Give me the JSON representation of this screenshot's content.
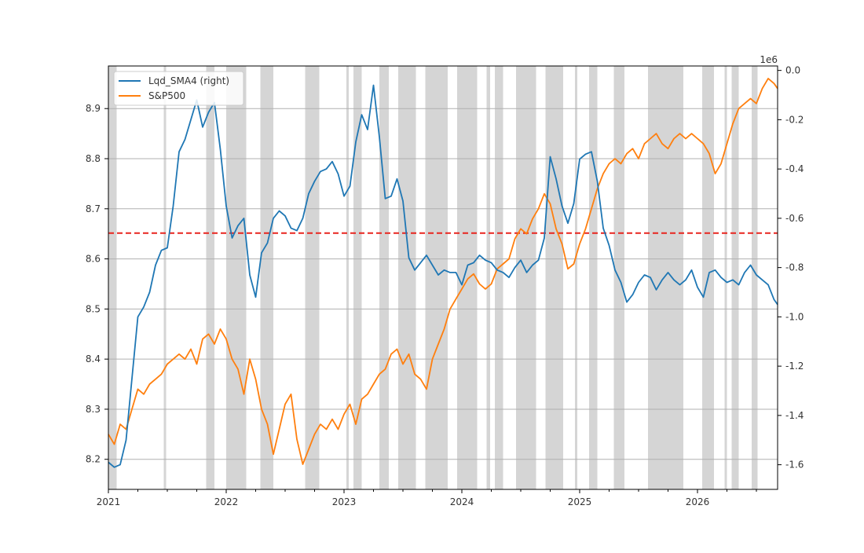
{
  "chart_data": {
    "type": "line",
    "title": "",
    "xlabel": "",
    "ylabel": "",
    "x_ticks": [
      "2021",
      "2022",
      "2023",
      "2024",
      "2025",
      "2026"
    ],
    "x_tick_values": [
      2021,
      2022,
      2023,
      2024,
      2025,
      2026
    ],
    "xlim": [
      2021.0,
      2026.68
    ],
    "y_left": {
      "lim": [
        8.14,
        8.985
      ],
      "ticks": [
        8.2,
        8.3,
        8.4,
        8.5,
        8.6,
        8.7,
        8.8,
        8.9
      ],
      "tick_labels": [
        "8.2",
        "8.3",
        "8.4",
        "8.5",
        "8.6",
        "8.7",
        "8.8",
        "8.9"
      ]
    },
    "y_right": {
      "lim": [
        -1.7,
        0.018
      ],
      "ticks": [
        0.0,
        -0.2,
        -0.4,
        -0.6,
        -0.8,
        -1.0,
        -1.2,
        -1.4,
        -1.6
      ],
      "tick_labels": [
        "0.0",
        "-0.2",
        "-0.4",
        "-0.6",
        "-0.8",
        "-1.0",
        "-1.2",
        "-1.4",
        "-1.6"
      ],
      "offset_label": "1e6"
    },
    "grid": "horizontal",
    "legend": {
      "placement": "top-left",
      "entries": [
        "Lqd_SMA4 (right)",
        "S&P500"
      ]
    },
    "threshold_line": {
      "axis": "right",
      "value": -0.66,
      "color": "#e8251e",
      "style": "dashed"
    },
    "shaded_periods": [
      [
        2021.0,
        2021.07
      ],
      [
        2021.47,
        2021.49
      ],
      [
        2021.83,
        2021.9
      ],
      [
        2022.0,
        2022.17
      ],
      [
        2022.29,
        2022.4
      ],
      [
        2022.67,
        2022.79
      ],
      [
        2023.02,
        2023.04
      ],
      [
        2023.08,
        2023.15
      ],
      [
        2023.3,
        2023.38
      ],
      [
        2023.46,
        2023.61
      ],
      [
        2023.69,
        2023.88
      ],
      [
        2023.96,
        2024.13
      ],
      [
        2024.21,
        2024.24
      ],
      [
        2024.28,
        2024.35
      ],
      [
        2024.46,
        2024.63
      ],
      [
        2024.71,
        2024.86
      ],
      [
        2024.96,
        2024.98
      ],
      [
        2025.08,
        2025.15
      ],
      [
        2025.29,
        2025.38
      ],
      [
        2025.58,
        2025.88
      ],
      [
        2026.04,
        2026.14
      ],
      [
        2026.23,
        2026.25
      ],
      [
        2026.29,
        2026.35
      ],
      [
        2026.46,
        2026.51
      ]
    ],
    "shade_color": "#d3d3d3",
    "series": [
      {
        "name": "Lqd_SMA4 (right)",
        "axis": "right",
        "color": "#1f77b4",
        "x": [
          2021.0,
          2021.05,
          2021.1,
          2021.15,
          2021.2,
          2021.25,
          2021.3,
          2021.35,
          2021.4,
          2021.45,
          2021.5,
          2021.55,
          2021.6,
          2021.65,
          2021.7,
          2021.75,
          2021.8,
          2021.85,
          2021.9,
          2021.95,
          2022.0,
          2022.05,
          2022.1,
          2022.15,
          2022.2,
          2022.25,
          2022.3,
          2022.35,
          2022.4,
          2022.45,
          2022.5,
          2022.55,
          2022.6,
          2022.65,
          2022.7,
          2022.75,
          2022.8,
          2022.85,
          2022.9,
          2022.95,
          2023.0,
          2023.05,
          2023.1,
          2023.15,
          2023.2,
          2023.25,
          2023.3,
          2023.35,
          2023.4,
          2023.45,
          2023.5,
          2023.55,
          2023.6,
          2023.65,
          2023.7,
          2023.75,
          2023.8,
          2023.85,
          2023.9,
          2023.95,
          2024.0,
          2024.05,
          2024.1,
          2024.15,
          2024.2,
          2024.25,
          2024.3,
          2024.35,
          2024.4,
          2024.45,
          2024.5,
          2024.55,
          2024.6,
          2024.65,
          2024.7,
          2024.75,
          2024.8,
          2024.85,
          2024.9,
          2024.95,
          2025.0,
          2025.05,
          2025.1,
          2025.15,
          2025.2,
          2025.25,
          2025.3,
          2025.35,
          2025.4,
          2025.45,
          2025.5,
          2025.55,
          2025.6,
          2025.65,
          2025.7,
          2025.75,
          2025.8,
          2025.85,
          2025.9,
          2025.95,
          2026.0,
          2026.05,
          2026.1,
          2026.15,
          2026.2,
          2026.25,
          2026.3,
          2026.35,
          2026.4,
          2026.45,
          2026.5,
          2026.55,
          2026.6,
          2026.65,
          2026.68
        ],
        "values": [
          -1.59,
          -1.61,
          -1.6,
          -1.5,
          -1.25,
          -1.0,
          -0.96,
          -0.9,
          -0.79,
          -0.73,
          -0.72,
          -0.55,
          -0.33,
          -0.28,
          -0.2,
          -0.12,
          -0.23,
          -0.17,
          -0.13,
          -0.32,
          -0.55,
          -0.68,
          -0.63,
          -0.6,
          -0.83,
          -0.92,
          -0.74,
          -0.7,
          -0.6,
          -0.57,
          -0.59,
          -0.64,
          -0.65,
          -0.6,
          -0.5,
          -0.45,
          -0.41,
          -0.4,
          -0.37,
          -0.42,
          -0.51,
          -0.47,
          -0.29,
          -0.18,
          -0.24,
          -0.06,
          -0.27,
          -0.52,
          -0.51,
          -0.44,
          -0.53,
          -0.76,
          -0.81,
          -0.78,
          -0.75,
          -0.79,
          -0.83,
          -0.81,
          -0.82,
          -0.82,
          -0.87,
          -0.79,
          -0.78,
          -0.75,
          -0.77,
          -0.78,
          -0.81,
          -0.82,
          -0.84,
          -0.8,
          -0.77,
          -0.82,
          -0.79,
          -0.77,
          -0.68,
          -0.35,
          -0.44,
          -0.55,
          -0.62,
          -0.54,
          -0.36,
          -0.34,
          -0.33,
          -0.45,
          -0.64,
          -0.71,
          -0.81,
          -0.86,
          -0.94,
          -0.91,
          -0.86,
          -0.83,
          -0.84,
          -0.89,
          -0.85,
          -0.82,
          -0.85,
          -0.87,
          -0.85,
          -0.81,
          -0.88,
          -0.92,
          -0.82,
          -0.81,
          -0.84,
          -0.86,
          -0.85,
          -0.87,
          -0.82,
          -0.79,
          -0.83,
          -0.85,
          -0.87,
          -0.93,
          -0.95
        ]
      },
      {
        "name": "S&P500",
        "axis": "left",
        "color": "#ff7f0e",
        "x": [
          2021.0,
          2021.05,
          2021.1,
          2021.15,
          2021.2,
          2021.25,
          2021.3,
          2021.35,
          2021.4,
          2021.45,
          2021.5,
          2021.55,
          2021.6,
          2021.65,
          2021.7,
          2021.75,
          2021.8,
          2021.85,
          2021.9,
          2021.95,
          2022.0,
          2022.05,
          2022.1,
          2022.15,
          2022.2,
          2022.25,
          2022.3,
          2022.35,
          2022.4,
          2022.45,
          2022.5,
          2022.55,
          2022.6,
          2022.65,
          2022.7,
          2022.75,
          2022.8,
          2022.85,
          2022.9,
          2022.95,
          2023.0,
          2023.05,
          2023.1,
          2023.15,
          2023.2,
          2023.25,
          2023.3,
          2023.35,
          2023.4,
          2023.45,
          2023.5,
          2023.55,
          2023.6,
          2023.65,
          2023.7,
          2023.75,
          2023.8,
          2023.85,
          2023.9,
          2023.95,
          2024.0,
          2024.05,
          2024.1,
          2024.15,
          2024.2,
          2024.25,
          2024.3,
          2024.35,
          2024.4,
          2024.45,
          2024.5,
          2024.55,
          2024.6,
          2024.65,
          2024.7,
          2024.75,
          2024.8,
          2024.85,
          2024.9,
          2024.95,
          2025.0,
          2025.05,
          2025.1,
          2025.15,
          2025.2,
          2025.25,
          2025.3,
          2025.35,
          2025.4,
          2025.45,
          2025.5,
          2025.55,
          2025.6,
          2025.65,
          2025.7,
          2025.75,
          2025.8,
          2025.85,
          2025.9,
          2025.95,
          2026.0,
          2026.05,
          2026.1,
          2026.15,
          2026.2,
          2026.25,
          2026.3,
          2026.35,
          2026.4,
          2026.45,
          2026.5,
          2026.55,
          2026.6,
          2026.65,
          2026.68
        ],
        "values": [
          8.25,
          8.23,
          8.27,
          8.26,
          8.3,
          8.34,
          8.33,
          8.35,
          8.36,
          8.37,
          8.39,
          8.4,
          8.41,
          8.4,
          8.42,
          8.39,
          8.44,
          8.45,
          8.43,
          8.46,
          8.44,
          8.4,
          8.38,
          8.33,
          8.4,
          8.36,
          8.3,
          8.27,
          8.21,
          8.26,
          8.31,
          8.33,
          8.24,
          8.19,
          8.22,
          8.25,
          8.27,
          8.26,
          8.28,
          8.26,
          8.29,
          8.31,
          8.27,
          8.32,
          8.33,
          8.35,
          8.37,
          8.38,
          8.41,
          8.42,
          8.39,
          8.41,
          8.37,
          8.36,
          8.34,
          8.4,
          8.43,
          8.46,
          8.5,
          8.52,
          8.54,
          8.56,
          8.57,
          8.55,
          8.54,
          8.55,
          8.58,
          8.59,
          8.6,
          8.64,
          8.66,
          8.65,
          8.68,
          8.7,
          8.73,
          8.71,
          8.66,
          8.63,
          8.58,
          8.59,
          8.63,
          8.66,
          8.7,
          8.74,
          8.77,
          8.79,
          8.8,
          8.79,
          8.81,
          8.82,
          8.8,
          8.83,
          8.84,
          8.85,
          8.83,
          8.82,
          8.84,
          8.85,
          8.84,
          8.85,
          8.84,
          8.83,
          8.81,
          8.77,
          8.79,
          8.83,
          8.87,
          8.9,
          8.91,
          8.92,
          8.91,
          8.94,
          8.96,
          8.95,
          8.94
        ]
      }
    ]
  }
}
